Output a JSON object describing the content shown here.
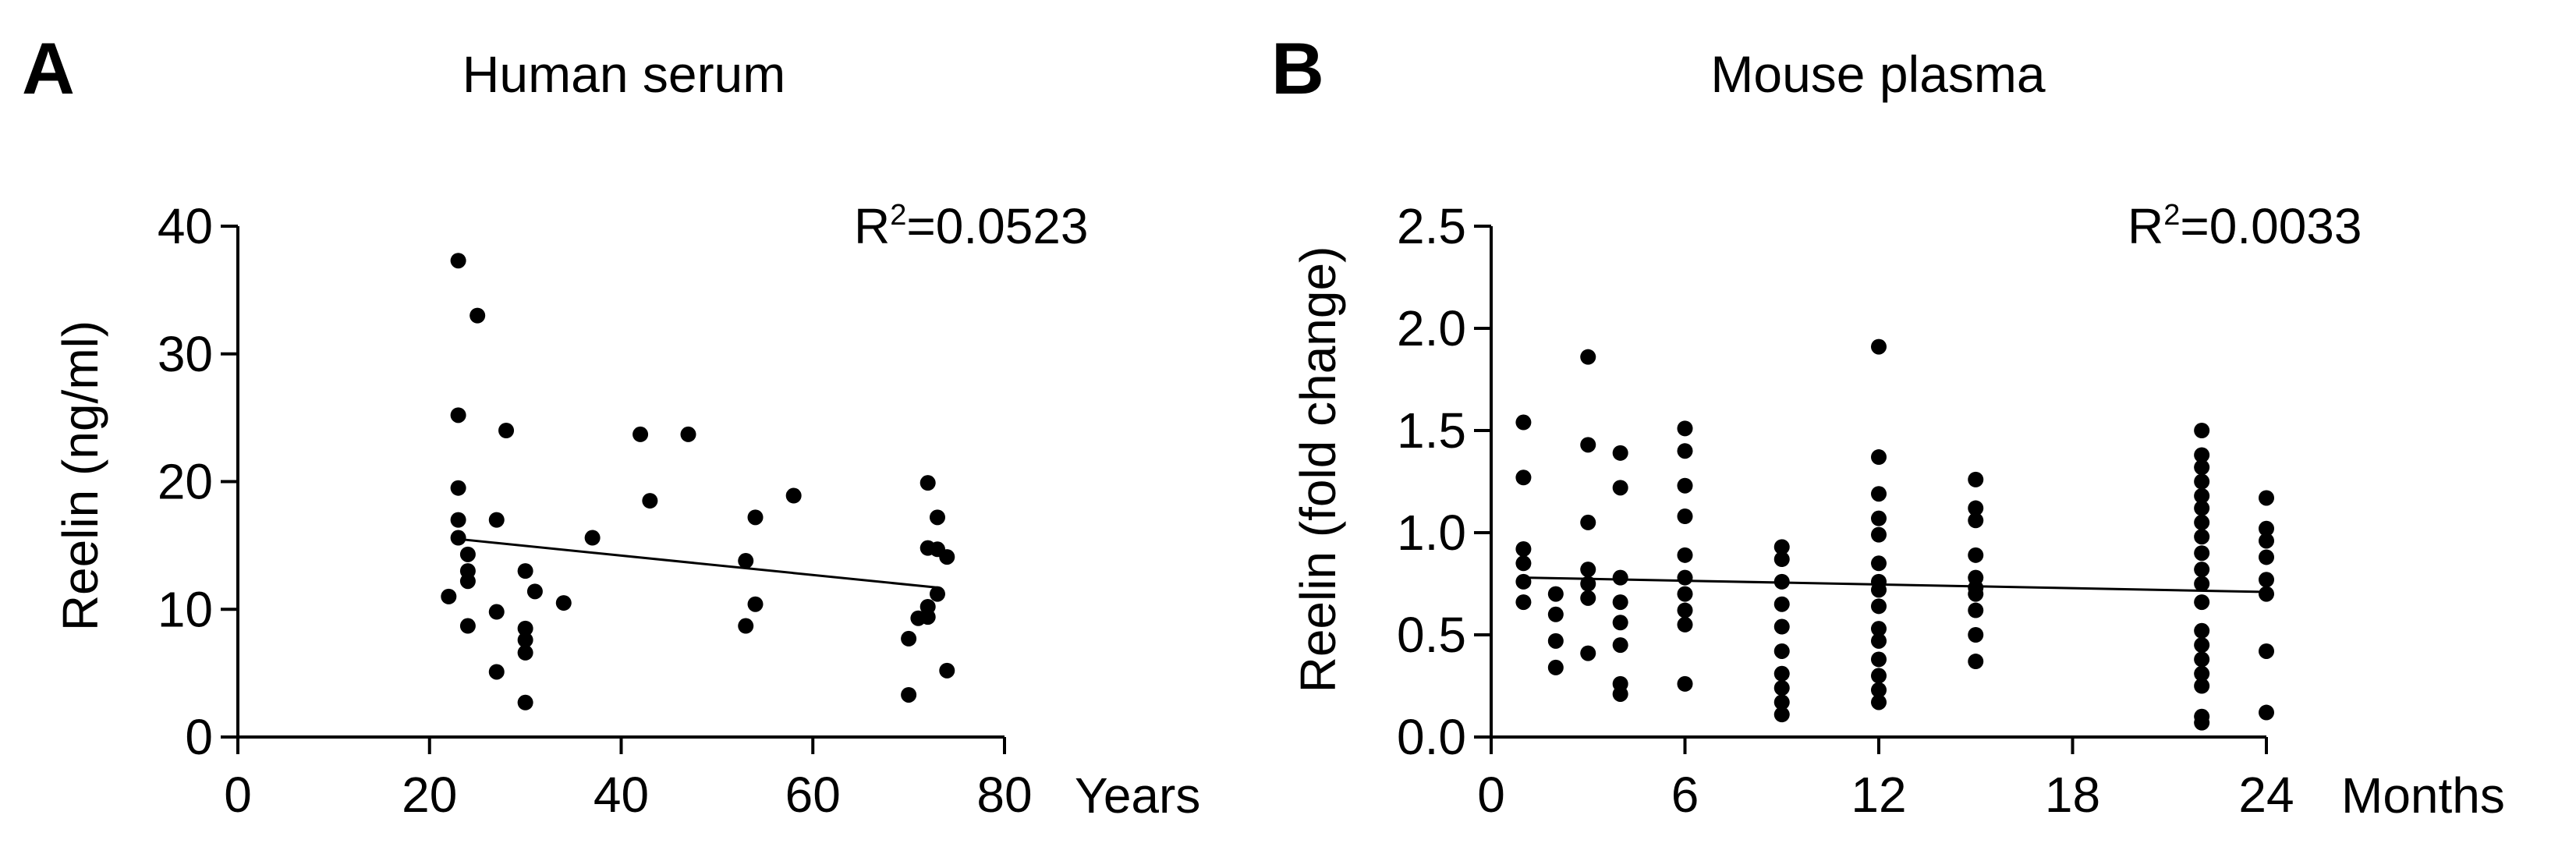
{
  "chart_data": [
    {
      "type": "scatter",
      "panel_letter": "A",
      "title": "Human serum",
      "ylabel": "Reelin (ng/ml)",
      "xlabel": "Years",
      "xlim": [
        0,
        80
      ],
      "ylim": [
        0,
        40
      ],
      "xticks": [
        "0",
        "20",
        "40",
        "60",
        "80"
      ],
      "yticks": [
        "0",
        "10",
        "20",
        "30",
        "40"
      ],
      "annotation": {
        "prefix": "R",
        "sup": "2",
        "value": "=0.0523"
      },
      "trendline": {
        "x": [
          23,
          73
        ],
        "y": [
          15.5,
          11.7
        ]
      },
      "points": [
        {
          "x": 22,
          "y": 11.0
        },
        {
          "x": 23,
          "y": 37.3
        },
        {
          "x": 23,
          "y": 25.2
        },
        {
          "x": 23,
          "y": 19.5
        },
        {
          "x": 23,
          "y": 17.0
        },
        {
          "x": 23,
          "y": 15.6
        },
        {
          "x": 24,
          "y": 14.3
        },
        {
          "x": 24,
          "y": 13.0
        },
        {
          "x": 24,
          "y": 12.2
        },
        {
          "x": 24,
          "y": 8.7
        },
        {
          "x": 25,
          "y": 33.0
        },
        {
          "x": 27,
          "y": 17.0
        },
        {
          "x": 27,
          "y": 9.8
        },
        {
          "x": 27,
          "y": 5.1
        },
        {
          "x": 28,
          "y": 24.0
        },
        {
          "x": 30,
          "y": 13.0
        },
        {
          "x": 30,
          "y": 8.5
        },
        {
          "x": 30,
          "y": 7.6
        },
        {
          "x": 30,
          "y": 6.6
        },
        {
          "x": 30,
          "y": 2.7
        },
        {
          "x": 31,
          "y": 11.4
        },
        {
          "x": 34,
          "y": 10.5
        },
        {
          "x": 37,
          "y": 15.6
        },
        {
          "x": 42,
          "y": 23.7
        },
        {
          "x": 43,
          "y": 18.5
        },
        {
          "x": 47,
          "y": 23.7
        },
        {
          "x": 53,
          "y": 13.8
        },
        {
          "x": 53,
          "y": 8.7
        },
        {
          "x": 54,
          "y": 17.2
        },
        {
          "x": 54,
          "y": 10.4
        },
        {
          "x": 58,
          "y": 18.9
        },
        {
          "x": 70,
          "y": 7.7
        },
        {
          "x": 70,
          "y": 3.3
        },
        {
          "x": 71,
          "y": 9.3
        },
        {
          "x": 72,
          "y": 19.9
        },
        {
          "x": 72,
          "y": 14.8
        },
        {
          "x": 72,
          "y": 10.2
        },
        {
          "x": 72,
          "y": 9.4
        },
        {
          "x": 73,
          "y": 17.2
        },
        {
          "x": 73,
          "y": 14.7
        },
        {
          "x": 73,
          "y": 11.2
        },
        {
          "x": 74,
          "y": 14.1
        },
        {
          "x": 74,
          "y": 5.2
        }
      ]
    },
    {
      "type": "scatter",
      "panel_letter": "B",
      "title": "Mouse plasma",
      "ylabel": "Reelin (fold change)",
      "xlabel": "Months",
      "xlim": [
        0,
        24
      ],
      "ylim": [
        0,
        2.5
      ],
      "xticks": [
        "0",
        "6",
        "12",
        "18",
        "24"
      ],
      "yticks": [
        "0.0",
        "0.5",
        "1.0",
        "1.5",
        "2.0",
        "2.5"
      ],
      "annotation": {
        "prefix": "R",
        "sup": "2",
        "value": "=0.0033"
      },
      "trendline": {
        "x": [
          1,
          24
        ],
        "y": [
          0.78,
          0.71
        ]
      },
      "points": [
        {
          "x": 1,
          "y": 1.54
        },
        {
          "x": 1,
          "y": 1.27
        },
        {
          "x": 1,
          "y": 0.92
        },
        {
          "x": 1,
          "y": 0.85
        },
        {
          "x": 1,
          "y": 0.76
        },
        {
          "x": 1,
          "y": 0.66
        },
        {
          "x": 2,
          "y": 0.7
        },
        {
          "x": 2,
          "y": 0.6
        },
        {
          "x": 2,
          "y": 0.47
        },
        {
          "x": 2,
          "y": 0.34
        },
        {
          "x": 3,
          "y": 1.86
        },
        {
          "x": 3,
          "y": 1.43
        },
        {
          "x": 3,
          "y": 1.05
        },
        {
          "x": 3,
          "y": 0.82
        },
        {
          "x": 3,
          "y": 0.75
        },
        {
          "x": 3,
          "y": 0.68
        },
        {
          "x": 3,
          "y": 0.41
        },
        {
          "x": 4,
          "y": 1.39
        },
        {
          "x": 4,
          "y": 1.22
        },
        {
          "x": 4,
          "y": 0.78
        },
        {
          "x": 4,
          "y": 0.66
        },
        {
          "x": 4,
          "y": 0.56
        },
        {
          "x": 4,
          "y": 0.45
        },
        {
          "x": 4,
          "y": 0.26
        },
        {
          "x": 4,
          "y": 0.21
        },
        {
          "x": 6,
          "y": 1.51
        },
        {
          "x": 6,
          "y": 1.4
        },
        {
          "x": 6,
          "y": 1.23
        },
        {
          "x": 6,
          "y": 1.08
        },
        {
          "x": 6,
          "y": 0.89
        },
        {
          "x": 6,
          "y": 0.78
        },
        {
          "x": 6,
          "y": 0.7
        },
        {
          "x": 6,
          "y": 0.62
        },
        {
          "x": 6,
          "y": 0.55
        },
        {
          "x": 6,
          "y": 0.26
        },
        {
          "x": 9,
          "y": 0.93
        },
        {
          "x": 9,
          "y": 0.87
        },
        {
          "x": 9,
          "y": 0.76
        },
        {
          "x": 9,
          "y": 0.65
        },
        {
          "x": 9,
          "y": 0.54
        },
        {
          "x": 9,
          "y": 0.42
        },
        {
          "x": 9,
          "y": 0.31
        },
        {
          "x": 9,
          "y": 0.24
        },
        {
          "x": 9,
          "y": 0.17
        },
        {
          "x": 9,
          "y": 0.11
        },
        {
          "x": 12,
          "y": 1.91
        },
        {
          "x": 12,
          "y": 1.37
        },
        {
          "x": 12,
          "y": 1.19
        },
        {
          "x": 12,
          "y": 1.07
        },
        {
          "x": 12,
          "y": 0.99
        },
        {
          "x": 12,
          "y": 0.85
        },
        {
          "x": 12,
          "y": 0.76
        },
        {
          "x": 12,
          "y": 0.72
        },
        {
          "x": 12,
          "y": 0.64
        },
        {
          "x": 12,
          "y": 0.53
        },
        {
          "x": 12,
          "y": 0.47
        },
        {
          "x": 12,
          "y": 0.38
        },
        {
          "x": 12,
          "y": 0.3
        },
        {
          "x": 12,
          "y": 0.23
        },
        {
          "x": 12,
          "y": 0.17
        },
        {
          "x": 15,
          "y": 1.26
        },
        {
          "x": 15,
          "y": 1.12
        },
        {
          "x": 15,
          "y": 1.06
        },
        {
          "x": 15,
          "y": 0.89
        },
        {
          "x": 15,
          "y": 0.78
        },
        {
          "x": 15,
          "y": 0.73
        },
        {
          "x": 15,
          "y": 0.7
        },
        {
          "x": 15,
          "y": 0.62
        },
        {
          "x": 15,
          "y": 0.5
        },
        {
          "x": 15,
          "y": 0.37
        },
        {
          "x": 22,
          "y": 1.5
        },
        {
          "x": 22,
          "y": 1.38
        },
        {
          "x": 22,
          "y": 1.32
        },
        {
          "x": 22,
          "y": 1.25
        },
        {
          "x": 22,
          "y": 1.18
        },
        {
          "x": 22,
          "y": 1.12
        },
        {
          "x": 22,
          "y": 1.05
        },
        {
          "x": 22,
          "y": 0.98
        },
        {
          "x": 22,
          "y": 0.9
        },
        {
          "x": 22,
          "y": 0.82
        },
        {
          "x": 22,
          "y": 0.75
        },
        {
          "x": 22,
          "y": 0.66
        },
        {
          "x": 22,
          "y": 0.52
        },
        {
          "x": 22,
          "y": 0.45
        },
        {
          "x": 22,
          "y": 0.38
        },
        {
          "x": 22,
          "y": 0.31
        },
        {
          "x": 22,
          "y": 0.25
        },
        {
          "x": 22,
          "y": 0.1
        },
        {
          "x": 22,
          "y": 0.07
        },
        {
          "x": 24,
          "y": 1.17
        },
        {
          "x": 24,
          "y": 1.02
        },
        {
          "x": 24,
          "y": 0.96
        },
        {
          "x": 24,
          "y": 0.88
        },
        {
          "x": 24,
          "y": 0.77
        },
        {
          "x": 24,
          "y": 0.7
        },
        {
          "x": 24,
          "y": 0.42
        },
        {
          "x": 24,
          "y": 0.12
        }
      ]
    }
  ]
}
